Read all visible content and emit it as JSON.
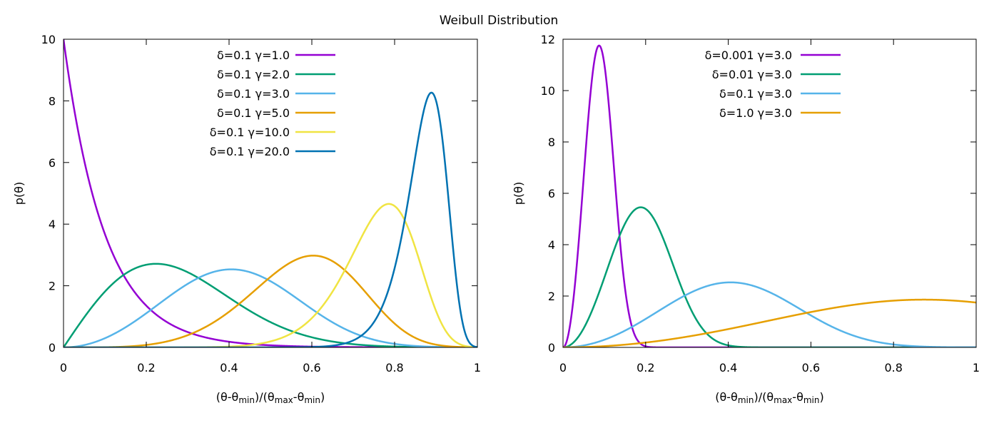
{
  "chart_data": {
    "title": "Weibull Distribution",
    "plots": [
      {
        "type": "line",
        "xlabel": "(θ-θmin)/(θmax-θmin)",
        "ylabel": "p(θ)",
        "xlim": [
          0,
          1
        ],
        "ylim": [
          0,
          10
        ],
        "xticks": [
          "0",
          "0.2",
          "0.4",
          "0.6",
          "0.8",
          "1"
        ],
        "yticks": [
          "0",
          "2",
          "4",
          "6",
          "8",
          "10"
        ],
        "legend_position": "top-center",
        "grid": false,
        "series": [
          {
            "name": "δ=0.1 γ=1.0",
            "delta": 0.1,
            "gamma": 1.0,
            "color": "#9400d3"
          },
          {
            "name": "δ=0.1 γ=2.0",
            "delta": 0.1,
            "gamma": 2.0,
            "color": "#009e73"
          },
          {
            "name": "δ=0.1 γ=3.0",
            "delta": 0.1,
            "gamma": 3.0,
            "color": "#56b4e9"
          },
          {
            "name": "δ=0.1 γ=5.0",
            "delta": 0.1,
            "gamma": 5.0,
            "color": "#e69f00"
          },
          {
            "name": "δ=0.1 γ=10.0",
            "delta": 0.1,
            "gamma": 10.0,
            "color": "#f0e442"
          },
          {
            "name": "δ=0.1 γ=20.0",
            "delta": 0.1,
            "gamma": 20.0,
            "color": "#0072b2"
          }
        ]
      },
      {
        "type": "line",
        "xlabel": "(θ-θmin)/(θmax-θmin)",
        "ylabel": "p(θ)",
        "xlim": [
          0,
          1
        ],
        "ylim": [
          0,
          12
        ],
        "xticks": [
          "0",
          "0.2",
          "0.4",
          "0.6",
          "0.8",
          "1"
        ],
        "yticks": [
          "0",
          "2",
          "4",
          "6",
          "8",
          "10",
          "12"
        ],
        "legend_position": "top-center",
        "grid": false,
        "series": [
          {
            "name": "δ=0.001 γ=3.0",
            "delta": 0.001,
            "gamma": 3.0,
            "color": "#9400d3"
          },
          {
            "name": "δ=0.01 γ=3.0",
            "delta": 0.01,
            "gamma": 3.0,
            "color": "#009e73"
          },
          {
            "name": "δ=0.1 γ=3.0",
            "delta": 0.1,
            "gamma": 3.0,
            "color": "#56b4e9"
          },
          {
            "name": "δ=1.0 γ=3.0",
            "delta": 1.0,
            "gamma": 3.0,
            "color": "#e69f00"
          }
        ]
      }
    ]
  }
}
